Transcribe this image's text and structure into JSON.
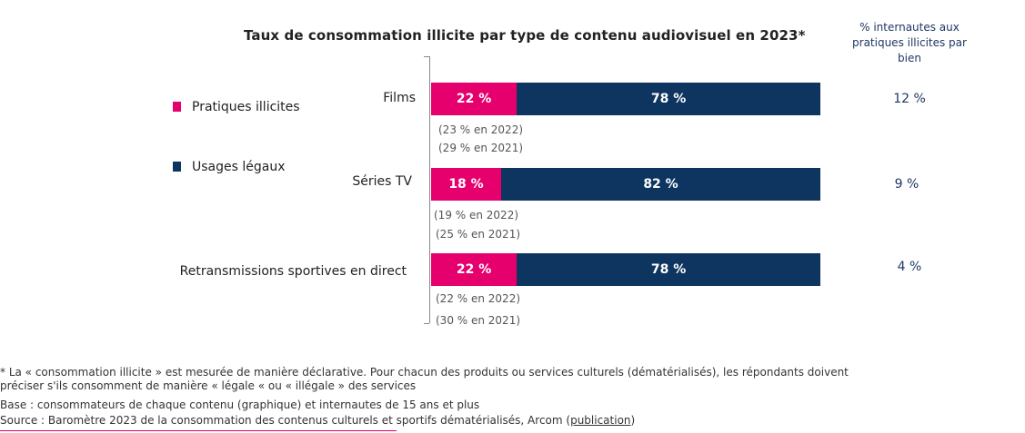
{
  "chart_data": {
    "type": "bar",
    "stacked": true,
    "orientation": "horizontal",
    "title": "Taux de consommation illicite par type de contenu audiovisuel en 2023*",
    "side_header": "% internautes aux pratiques illicites par bien",
    "legend": [
      {
        "name": "Pratiques illicites",
        "color": "#e6006e"
      },
      {
        "name": "Usages légaux",
        "color": "#0d3560"
      }
    ],
    "categories": [
      "Films",
      "Séries TV",
      "Retransmissions sportives en direct"
    ],
    "series": [
      {
        "name": "Pratiques illicites",
        "values": [
          22,
          18,
          22
        ],
        "labels": [
          "22 %",
          "18 %",
          "22 %"
        ]
      },
      {
        "name": "Usages légaux",
        "values": [
          78,
          82,
          78
        ],
        "labels": [
          "78 %",
          "82 %",
          "78 %"
        ]
      }
    ],
    "history_notes": [
      [
        "(23 % en 2022)",
        "(29 % en 2021)"
      ],
      [
        "(19 % en 2022)",
        "(25 % en 2021)"
      ],
      [
        "(22 % en 2022)",
        "(30 % en 2021)"
      ]
    ],
    "share_values": [
      "12 %",
      "9 %",
      "4 %"
    ],
    "xlim": [
      0,
      100
    ]
  },
  "footer": {
    "note_line1": "* La « consommation illicite  » est mesurée de manière déclarative. Pour chacun des produits ou services culturels (dématérialisés), les répondants doivent",
    "note_line2": "préciser s'ils consomment de manière « légale « ou « illégale » des services",
    "base": "Base : consommateurs de chaque contenu (graphique) et internautes de 15 ans et plus",
    "source_prefix": "Source : Baromètre 2023 de la consommation des contenus culturels et sportifs dématérialisés, Arcom (",
    "source_link": "publication",
    "source_suffix": ")"
  }
}
